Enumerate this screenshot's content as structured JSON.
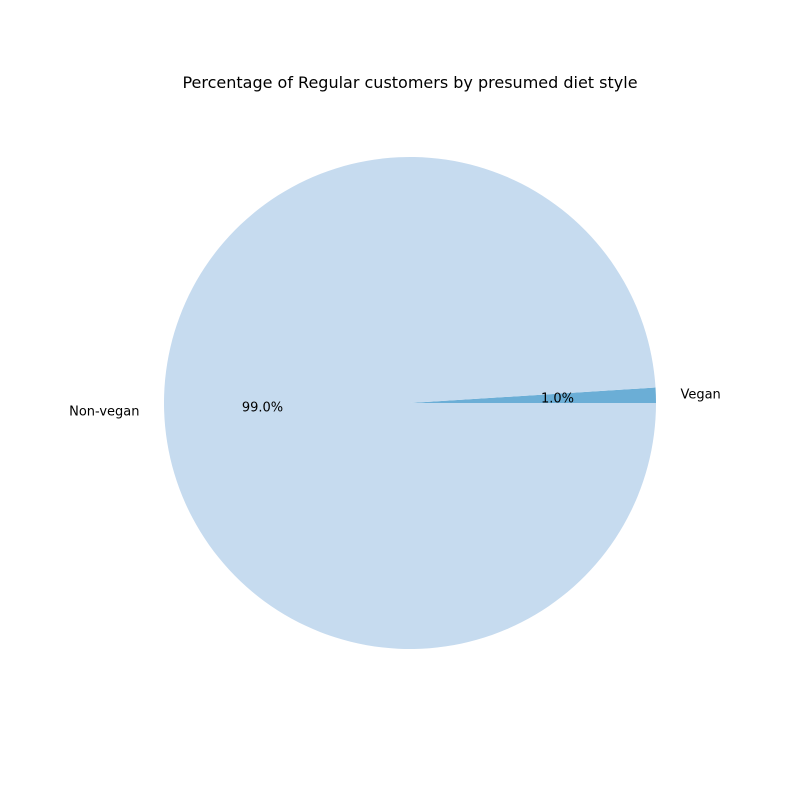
{
  "chart_data": {
    "type": "pie",
    "title": "Percentage of Regular customers by presumed diet style",
    "categories": [
      "Vegan",
      "Non-vegan"
    ],
    "values": [
      1.0,
      99.0
    ],
    "value_labels": [
      "1.0%",
      "99.0%"
    ],
    "colors": [
      "#6baed6",
      "#c6dbef"
    ],
    "start_angle_deg": 0,
    "direction": "counterclockwise",
    "legend": "none"
  }
}
